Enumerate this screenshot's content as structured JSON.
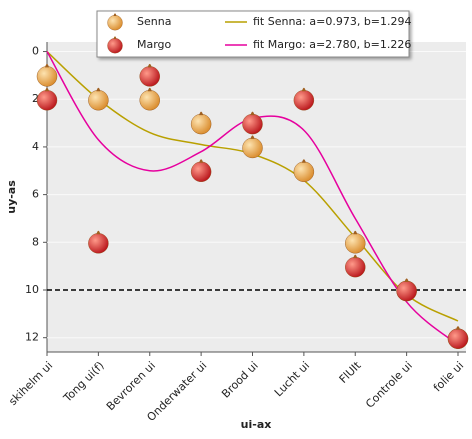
{
  "chart_data": {
    "type": "scatter",
    "x_label": "ui-ax",
    "y_label": "uy-as",
    "categories": [
      "skihelm ui",
      "Tong ui(f)",
      "Bevroren ui",
      "Onderwater ui",
      "Brood ui",
      "Lucht ui",
      "FlUIt",
      "Controle ui",
      "folie ui"
    ],
    "ylim": [
      -0.4,
      12.6
    ],
    "y_inverted": true,
    "yticks": [
      0,
      2,
      4,
      6,
      8,
      10,
      12
    ],
    "hline": 10,
    "series": [
      {
        "name": "Senna",
        "kind": "marker",
        "color": "#f4a742",
        "values": [
          1,
          2,
          2,
          3,
          4,
          5,
          8,
          10,
          12
        ]
      },
      {
        "name": "Margo",
        "kind": "marker",
        "color": "#e8262a",
        "values": [
          2,
          8,
          1,
          5,
          3,
          2,
          9,
          10,
          12
        ]
      },
      {
        "name": "fit Senna: a=0.973, b=1.294",
        "kind": "line",
        "color": "#b9a000",
        "values": [
          0,
          2.0,
          3.4,
          3.9,
          4.3,
          5.4,
          7.8,
          10.2,
          11.3
        ]
      },
      {
        "name": "fit Margo: a=2.780, b=1.226",
        "kind": "line",
        "color": "#e6009e",
        "values": [
          0,
          3.7,
          5.0,
          4.2,
          2.8,
          3.3,
          7.0,
          10.5,
          12.3
        ]
      }
    ]
  }
}
